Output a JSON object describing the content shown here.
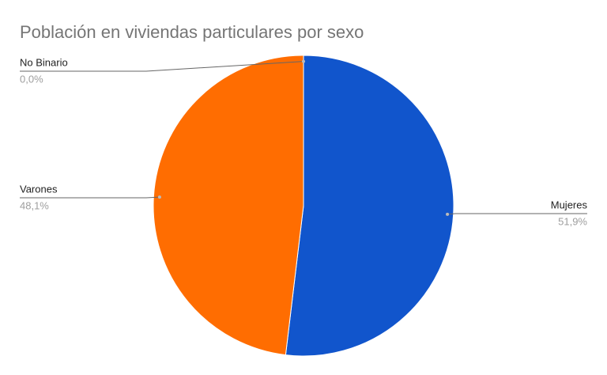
{
  "chart_data": {
    "type": "pie",
    "title": "Población en viviendas particulares por sexo",
    "categories": [
      "Mujeres",
      "Varones",
      "No Binario"
    ],
    "values": [
      51.9,
      48.1,
      0.0
    ],
    "value_labels": [
      "51,9%",
      "48,1%",
      "0,0%"
    ],
    "colors": [
      "#1155cc",
      "#ff6d01",
      "#46bdc6"
    ]
  }
}
